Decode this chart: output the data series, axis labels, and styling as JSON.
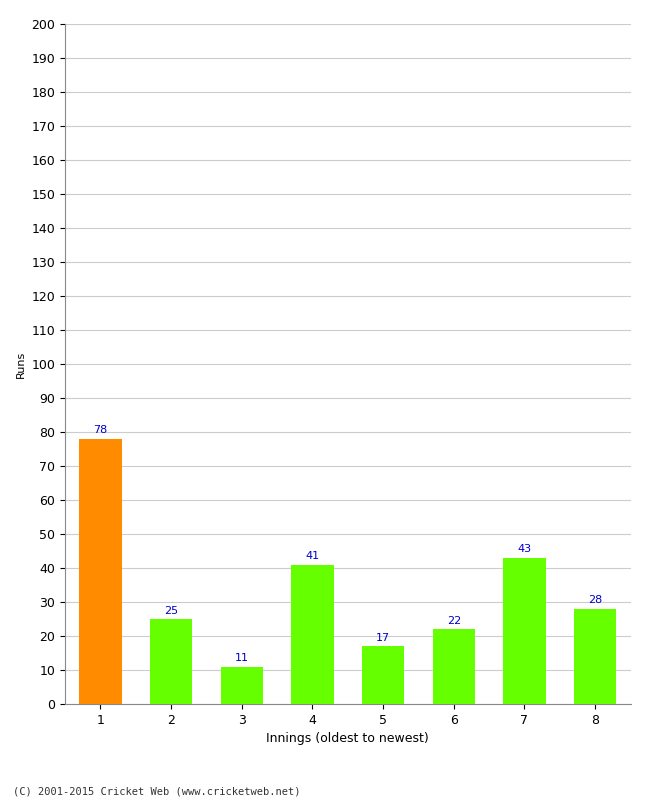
{
  "categories": [
    "1",
    "2",
    "3",
    "4",
    "5",
    "6",
    "7",
    "8"
  ],
  "values": [
    78,
    25,
    11,
    41,
    17,
    22,
    43,
    28
  ],
  "bar_colors": [
    "#FF8C00",
    "#66FF00",
    "#66FF00",
    "#66FF00",
    "#66FF00",
    "#66FF00",
    "#66FF00",
    "#66FF00"
  ],
  "xlabel": "Innings (oldest to newest)",
  "ylabel": "Runs",
  "ylim": [
    0,
    200
  ],
  "yticks": [
    0,
    10,
    20,
    30,
    40,
    50,
    60,
    70,
    80,
    90,
    100,
    110,
    120,
    130,
    140,
    150,
    160,
    170,
    180,
    190,
    200
  ],
  "label_color": "#0000CC",
  "label_fontsize": 8,
  "ylabel_fontsize": 8,
  "xlabel_fontsize": 9,
  "tick_fontsize": 9,
  "footer": "(C) 2001-2015 Cricket Web (www.cricketweb.net)",
  "background_color": "#FFFFFF",
  "grid_color": "#CCCCCC",
  "bar_width": 0.6
}
